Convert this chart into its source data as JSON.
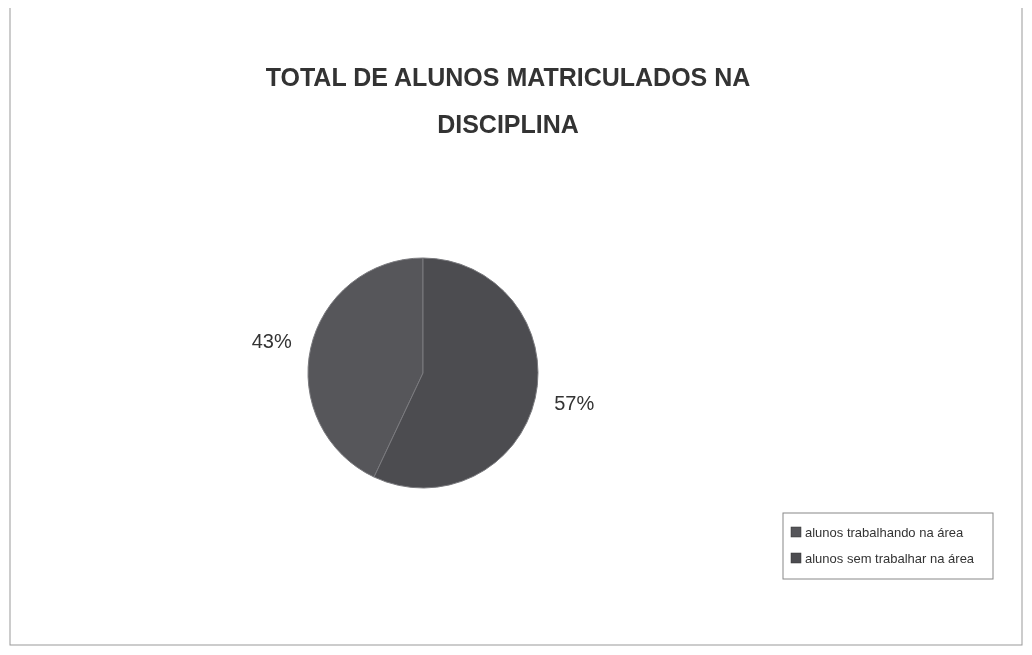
{
  "chart_data": {
    "type": "pie",
    "title": "TOTAL DE ALUNOS MATRICULADOS NA DISCIPLINA",
    "categories": [
      "alunos trabalhando na área",
      "alunos sem trabalhar na área"
    ],
    "values": [
      43,
      57
    ],
    "colors": [
      "#56565a",
      "#4c4c50"
    ],
    "value_labels": [
      "43%",
      "57%"
    ],
    "legend": "bottom right"
  }
}
